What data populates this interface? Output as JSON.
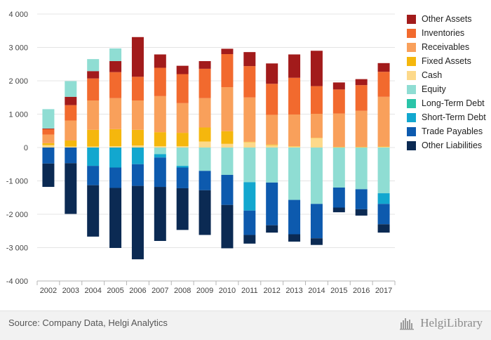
{
  "chart_data": {
    "type": "bar",
    "stacked": true,
    "categories": [
      "2002",
      "2003",
      "2004",
      "2005",
      "2006",
      "2007",
      "2008",
      "2009",
      "2010",
      "2011",
      "2012",
      "2013",
      "2014",
      "2015",
      "2016",
      "2017"
    ],
    "ylim": [
      -4000,
      4000
    ],
    "yticks": [
      -4000,
      -3000,
      -2000,
      -1000,
      0,
      1000,
      2000,
      3000,
      4000
    ],
    "ytick_labels": [
      "-4 000",
      "-3 000",
      "-2 000",
      "-1 000",
      "0",
      "1 000",
      "2 000",
      "3 000",
      "4 000"
    ],
    "grid": true,
    "legend_position": "right",
    "assets": [
      {
        "name": "Cash",
        "color": "#FDD98A",
        "values": [
          70,
          30,
          30,
          40,
          60,
          40,
          40,
          180,
          110,
          160,
          70,
          30,
          280,
          10,
          10,
          20
        ]
      },
      {
        "name": "Fixed Assets",
        "color": "#F5B70D",
        "values": [
          60,
          180,
          500,
          510,
          470,
          420,
          400,
          420,
          380,
          10,
          20,
          10,
          10,
          10,
          10,
          10
        ]
      },
      {
        "name": "Receivables",
        "color": "#F9A05B",
        "values": [
          260,
          600,
          880,
          930,
          880,
          1080,
          890,
          880,
          1320,
          1330,
          890,
          950,
          720,
          1000,
          1080,
          1490
        ]
      },
      {
        "name": "Inventories",
        "color": "#F26A2E",
        "values": [
          160,
          460,
          660,
          780,
          710,
          850,
          870,
          880,
          990,
          940,
          930,
          1100,
          830,
          720,
          770,
          750
        ]
      },
      {
        "name": "Other Assets",
        "color": "#A21B1B",
        "values": [
          20,
          250,
          220,
          330,
          1190,
          400,
          250,
          230,
          160,
          420,
          610,
          700,
          1060,
          210,
          180,
          260
        ]
      },
      {
        "name": "Equity",
        "color": "#8FDDD3",
        "values": [
          580,
          470,
          360,
          380,
          0,
          0,
          0,
          0,
          0,
          0,
          0,
          0,
          0,
          0,
          0,
          0
        ]
      }
    ],
    "liabilities": [
      {
        "name": "Equity",
        "color": "#8FDDD3",
        "values": [
          0,
          0,
          0,
          0,
          0,
          200,
          550,
          700,
          820,
          1040,
          1050,
          1570,
          1690,
          1200,
          1250,
          1370
        ]
      },
      {
        "name": "Long-Term Debt",
        "color": "#2AC4A8",
        "values": [
          0,
          0,
          0,
          0,
          0,
          0,
          0,
          0,
          0,
          0,
          0,
          0,
          0,
          0,
          0,
          0
        ]
      },
      {
        "name": "Short-Term Debt",
        "color": "#12A7CF",
        "values": [
          0,
          0,
          550,
          600,
          500,
          100,
          50,
          0,
          0,
          850,
          0,
          0,
          0,
          0,
          0,
          320
        ]
      },
      {
        "name": "Trade Payables",
        "color": "#0D5AAE",
        "values": [
          480,
          470,
          580,
          610,
          650,
          880,
          620,
          580,
          900,
          730,
          1280,
          1030,
          1030,
          600,
          600,
          610
        ]
      },
      {
        "name": "Other Liabilities",
        "color": "#0B2A53",
        "values": [
          700,
          1520,
          1540,
          1800,
          2200,
          1620,
          1250,
          1340,
          1300,
          260,
          220,
          220,
          200,
          140,
          190,
          250
        ]
      }
    ],
    "legend": [
      {
        "name": "Other Assets",
        "color": "#A21B1B"
      },
      {
        "name": "Inventories",
        "color": "#F26A2E"
      },
      {
        "name": "Receivables",
        "color": "#F9A05B"
      },
      {
        "name": "Fixed Assets",
        "color": "#F5B70D"
      },
      {
        "name": "Cash",
        "color": "#FDD98A"
      },
      {
        "name": "Equity",
        "color": "#8FDDD3"
      },
      {
        "name": "Long-Term Debt",
        "color": "#2AC4A8"
      },
      {
        "name": "Short-Term Debt",
        "color": "#12A7CF"
      },
      {
        "name": "Trade Payables",
        "color": "#0D5AAE"
      },
      {
        "name": "Other Liabilities",
        "color": "#0B2A53"
      }
    ]
  },
  "footer": {
    "source": "Source: Company Data, Helgi Analytics",
    "brand": "HelgiLibrary",
    "logo_icon": "helgi-library-logo-icon"
  }
}
